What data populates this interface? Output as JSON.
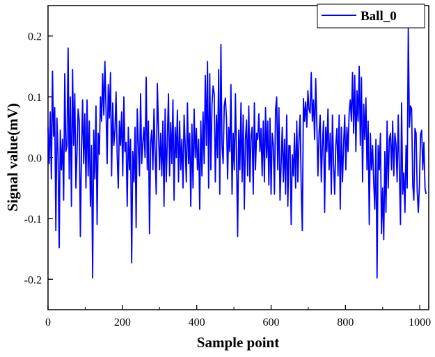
{
  "chart_data": {
    "type": "line",
    "title": "",
    "xlabel": "Sample point",
    "ylabel": "Signal value(mV)",
    "xlim": [
      0,
      1024
    ],
    "ylim": [
      -0.25,
      0.25
    ],
    "grid": false,
    "legend_position": "top-right",
    "x_ticks": [
      0,
      200,
      400,
      600,
      800,
      1000
    ],
    "x_tick_labels": [
      "0",
      "200",
      "400",
      "600",
      "800",
      "1000"
    ],
    "y_ticks": [
      -0.2,
      -0.1,
      0.0,
      0.1,
      0.2
    ],
    "y_tick_labels": [
      "-0.2",
      "-0.1",
      "0.0",
      "0.1",
      "0.2"
    ],
    "series": [
      {
        "name": "Ball_0",
        "color": "#0000ff",
        "x_start": 0,
        "x_step": 3,
        "values": [
          0.05,
          -0.01,
          0.075,
          -0.035,
          0.142,
          0.035,
          0.082,
          -0.12,
          0.065,
          0.005,
          -0.148,
          0.045,
          -0.02,
          0.03,
          -0.07,
          0.138,
          0.01,
          0.02,
          0.18,
          -0.035,
          0.1,
          -0.08,
          0.145,
          0.02,
          0.105,
          -0.05,
          0.01,
          0.08,
          0.06,
          -0.13,
          0.01,
          0.095,
          -0.01,
          0.072,
          -0.05,
          0.095,
          -0.03,
          0.06,
          -0.08,
          0.02,
          -0.198,
          0.045,
          -0.035,
          0.085,
          -0.11,
          0.04,
          0.005,
          0.1,
          0.06,
          0.138,
          0.07,
          0.158,
          0.08,
          -0.01,
          0.12,
          0.065,
          0.14,
          -0.03,
          0.09,
          0.02,
          0.045,
          0.108,
          0.005,
          -0.05,
          0.06,
          0.02,
          0.075,
          -0.03,
          0.1,
          0.01,
          0.025,
          -0.08,
          0.05,
          -0.02,
          0.03,
          -0.173,
          0.01,
          -0.04,
          0.05,
          -0.115,
          0.08,
          0.02,
          -0.03,
          0.105,
          -0.01,
          0.025,
          0.05,
          0.0,
          0.132,
          -0.02,
          0.06,
          -0.125,
          0.025,
          0.045,
          -0.02,
          0.08,
          0.01,
          -0.06,
          0.122,
          0.05,
          -0.02,
          0.04,
          -0.03,
          0.06,
          -0.08,
          0.08,
          -0.04,
          0.03,
          0.105,
          -0.03,
          0.058,
          -0.01,
          0.095,
          -0.07,
          0.05,
          0.0,
          0.078,
          -0.04,
          0.06,
          -0.02,
          0.03,
          -0.05,
          0.07,
          0.02,
          -0.04,
          0.09,
          -0.01,
          0.04,
          -0.08,
          0.055,
          -0.05,
          0.08,
          0.0,
          0.048,
          -0.02,
          0.03,
          -0.085,
          0.06,
          -0.03,
          0.075,
          -0.01,
          0.135,
          0.02,
          0.158,
          -0.05,
          0.138,
          -0.02,
          0.087,
          0.118,
          0.105,
          -0.04,
          0.07,
          0.0,
          0.145,
          -0.06,
          0.186,
          0.02,
          -0.01,
          0.085,
          0.098,
          0.065,
          -0.035,
          0.05,
          0.01,
          0.12,
          -0.06,
          0.04,
          -0.02,
          0.105,
          0.0,
          -0.13,
          0.045,
          -0.02,
          0.09,
          -0.04,
          0.07,
          -0.085,
          0.03,
          0.062,
          -0.03,
          0.085,
          -0.04,
          0.035,
          0.05,
          -0.06,
          0.09,
          -0.02,
          0.04,
          0.03,
          0.072,
          0.01,
          0.048,
          -0.03,
          0.06,
          -0.04,
          0.082,
          0.0,
          0.06,
          -0.045,
          0.065,
          -0.06,
          0.04,
          0.02,
          -0.06,
          0.078,
          0.1,
          -0.02,
          0.082,
          -0.07,
          -0.01,
          0.05,
          -0.04,
          0.03,
          -0.06,
          0.07,
          -0.08,
          0.02,
          0.02,
          -0.11,
          0.005,
          -0.03,
          0.04,
          -0.05,
          0.06,
          -0.04,
          0.03,
          0.07,
          -0.05,
          -0.12,
          0.097,
          0.06,
          0.092,
          0.05,
          0.11,
          0.08,
          0.073,
          0.14,
          0.06,
          0.095,
          0.03,
          0.13,
          0.055,
          -0.03,
          0.04,
          0.07,
          -0.04,
          0.02,
          0.06,
          -0.09,
          0.05,
          0.01,
          0.08,
          -0.02,
          0.04,
          -0.06,
          0.07,
          -0.01,
          -0.06,
          0.02,
          0.048,
          -0.03,
          0.07,
          -0.085,
          0.05,
          -0.04,
          0.02,
          0.07,
          -0.02,
          0.05,
          0.01,
          0.075,
          0.095,
          0.06,
          0.14,
          0.04,
          0.135,
          0.01,
          0.11,
          0.06,
          0.15,
          0.02,
          0.132,
          -0.04,
          0.088,
          0.03,
          0.098,
          -0.02,
          0.06,
          -0.11,
          0.04,
          -0.02,
          0.02,
          -0.04,
          -0.085,
          0.03,
          -0.198,
          0.02,
          -0.02,
          0.04,
          -0.125,
          -0.05,
          -0.135,
          0.01,
          -0.09,
          0.06,
          -0.05,
          0.03,
          0.04,
          -0.02,
          0.06,
          -0.03,
          0.04,
          0.02,
          -0.04,
          0.07,
          -0.02,
          -0.11,
          0.09,
          -0.06,
          -0.025,
          -0.09,
          0.02,
          -0.05,
          0.213,
          0.05,
          0.085,
          0.08,
          -0.045,
          -0.07,
          0.048,
          0.04,
          -0.055,
          -0.09,
          -0.045,
          0.038,
          0.045,
          -0.02,
          0.025,
          -0.05,
          -0.06
        ]
      }
    ]
  }
}
